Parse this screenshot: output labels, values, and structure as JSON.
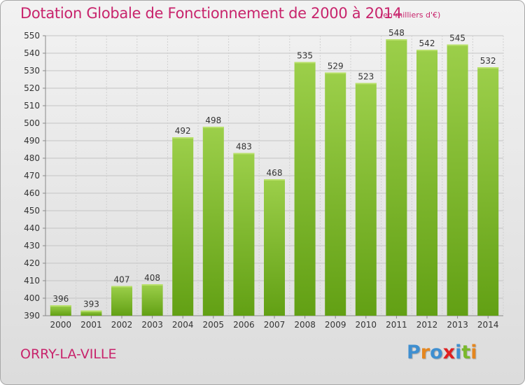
{
  "chart_data": {
    "type": "bar",
    "title": "Dotation Globale de Fonctionnement de 2000 à 2014",
    "unit_note": "(en milliers d'€)",
    "categories": [
      "2000",
      "2001",
      "2002",
      "2003",
      "2004",
      "2005",
      "2006",
      "2007",
      "2008",
      "2009",
      "2010",
      "2011",
      "2012",
      "2013",
      "2014"
    ],
    "values": [
      396,
      393,
      407,
      408,
      492,
      498,
      483,
      468,
      535,
      529,
      523,
      548,
      542,
      545,
      532
    ],
    "ylim": [
      390,
      550
    ],
    "yticks": [
      390,
      400,
      410,
      420,
      430,
      440,
      450,
      460,
      470,
      480,
      490,
      500,
      510,
      520,
      530,
      540,
      550
    ],
    "grid": true,
    "bar_color": "#7fba2e"
  },
  "footer": {
    "city": "ORRY-LA-VILLE",
    "logo_text": "Proxiti"
  }
}
